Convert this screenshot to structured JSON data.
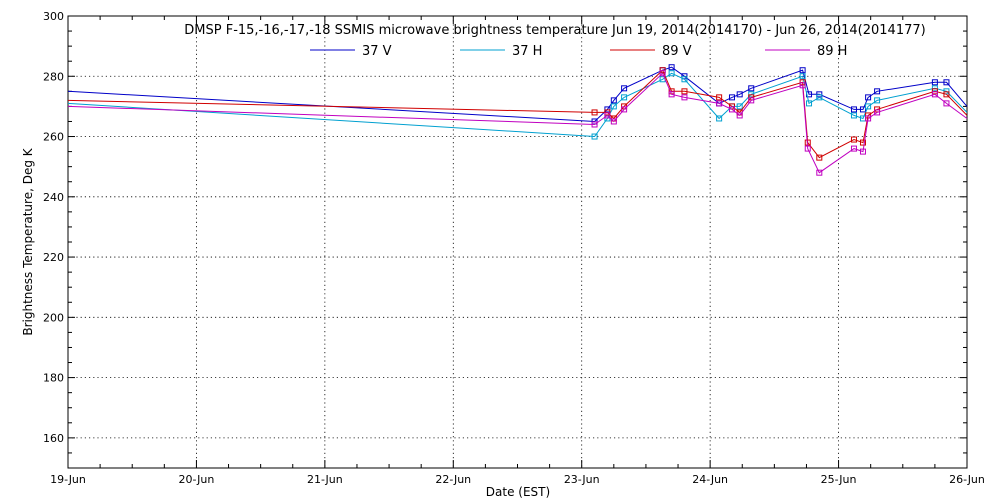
{
  "chart_data": {
    "type": "line",
    "title": "DMSP F-15,-16,-17,-18 SSMIS microwave brightness temperature Jun 19, 2014(2014170) - Jun 26, 2014(2014177)",
    "xlabel": "Date (EST)",
    "ylabel": "Brightness Temperature, Deg K",
    "xlim": [
      0,
      7
    ],
    "ylim": [
      150,
      300
    ],
    "x_ticks": [
      {
        "value": 0,
        "label": "19-Jun"
      },
      {
        "value": 1,
        "label": "20-Jun"
      },
      {
        "value": 2,
        "label": "21-Jun"
      },
      {
        "value": 3,
        "label": "22-Jun"
      },
      {
        "value": 4,
        "label": "23-Jun"
      },
      {
        "value": 5,
        "label": "24-Jun"
      },
      {
        "value": 6,
        "label": "25-Jun"
      },
      {
        "value": 7,
        "label": "26-Jun"
      }
    ],
    "y_ticks": [
      160,
      180,
      200,
      220,
      240,
      260,
      280,
      300
    ],
    "grid": true,
    "legend_position": "top-center",
    "series": [
      {
        "name": "37 V",
        "color": "#0000c8",
        "x": [
          0.0,
          4.1,
          4.2,
          4.25,
          4.33,
          4.63,
          4.7,
          4.8,
          5.07,
          5.17,
          5.23,
          5.32,
          5.72,
          5.77,
          5.85,
          6.12,
          6.19,
          6.23,
          6.3,
          6.75,
          6.84,
          7.0
        ],
        "values": [
          275,
          265,
          269,
          272,
          276,
          282,
          283,
          280,
          271,
          273,
          274,
          276,
          282,
          274,
          274,
          269,
          269,
          273,
          275,
          278,
          278,
          270
        ]
      },
      {
        "name": "37 H",
        "color": "#00a0d0",
        "x": [
          0.0,
          4.1,
          4.2,
          4.25,
          4.33,
          4.63,
          4.7,
          4.8,
          5.07,
          5.17,
          5.23,
          5.32,
          5.72,
          5.77,
          5.85,
          6.12,
          6.19,
          6.23,
          6.3,
          6.75,
          6.84,
          7.0
        ],
        "values": [
          271,
          260,
          266,
          270,
          273,
          279,
          281,
          279,
          266,
          270,
          270,
          274,
          280,
          271,
          273,
          267,
          266,
          270,
          272,
          276,
          275,
          268
        ]
      },
      {
        "name": "89 V",
        "color": "#d00000",
        "x": [
          0.0,
          4.1,
          4.2,
          4.25,
          4.33,
          4.63,
          4.7,
          4.8,
          5.07,
          5.17,
          5.23,
          5.32,
          5.72,
          5.76,
          5.85,
          6.12,
          6.19,
          6.23,
          6.3,
          6.75,
          6.84,
          7.0
        ],
        "values": [
          272,
          268,
          268,
          266,
          270,
          282,
          275,
          275,
          273,
          270,
          268,
          273,
          278,
          258,
          253,
          259,
          258,
          267,
          269,
          275,
          274,
          267
        ]
      },
      {
        "name": "89 H",
        "color": "#c000c0",
        "x": [
          0.0,
          4.1,
          4.2,
          4.25,
          4.33,
          4.63,
          4.7,
          4.8,
          5.07,
          5.17,
          5.23,
          5.32,
          5.72,
          5.76,
          5.85,
          6.12,
          6.19,
          6.23,
          6.3,
          6.75,
          6.84,
          7.0
        ],
        "values": [
          270,
          264,
          267,
          265,
          269,
          281,
          274,
          273,
          271,
          269,
          267,
          272,
          277,
          256,
          248,
          256,
          255,
          266,
          268,
          274,
          271,
          266
        ]
      }
    ]
  }
}
